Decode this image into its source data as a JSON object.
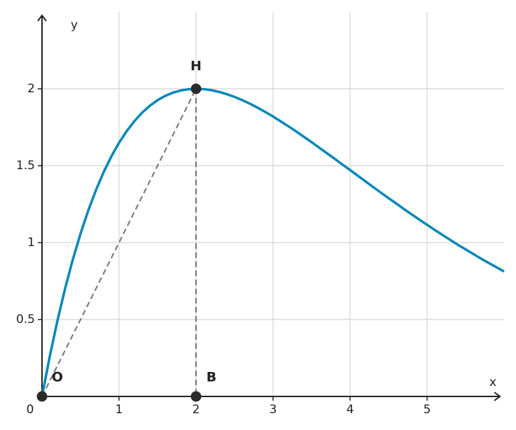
{
  "chart_data": {
    "type": "line",
    "x_label": "x",
    "y_label": "y",
    "x": [
      0,
      0.1,
      0.2,
      0.3,
      0.4,
      0.5,
      0.6,
      0.7,
      0.8,
      0.9,
      1.0,
      1.1,
      1.2,
      1.3,
      1.4,
      1.5,
      1.6,
      1.7,
      1.8,
      1.9,
      2.0,
      2.1,
      2.2,
      2.3,
      2.4,
      2.5,
      2.6,
      2.7,
      2.8,
      2.9,
      3.0,
      3.1,
      3.2,
      3.3,
      3.4,
      3.5,
      3.6,
      3.7,
      3.8,
      3.9,
      4.0,
      4.1,
      4.2,
      4.3,
      4.4,
      4.5,
      4.6,
      4.7,
      4.8,
      4.9,
      5.0,
      5.1,
      5.2,
      5.3,
      5.4,
      5.5,
      5.6,
      5.7,
      5.8,
      5.9,
      6.0
    ],
    "values": [
      0,
      0.259,
      0.492,
      0.702,
      0.89,
      1.058,
      1.208,
      1.341,
      1.458,
      1.56,
      1.649,
      1.725,
      1.79,
      1.845,
      1.89,
      1.926,
      1.954,
      1.975,
      1.989,
      1.997,
      2,
      1.998,
      1.991,
      1.98,
      1.965,
      1.947,
      1.926,
      1.903,
      1.877,
      1.849,
      1.82,
      1.788,
      1.756,
      1.723,
      1.688,
      1.653,
      1.617,
      1.581,
      1.545,
      1.508,
      1.472,
      1.435,
      1.398,
      1.361,
      1.325,
      1.289,
      1.254,
      1.218,
      1.184,
      1.149,
      1.116,
      1.082,
      1.05,
      1.018,
      0.986,
      0.956,
      0.926,
      0.896,
      0.868,
      0.84,
      0.812
    ],
    "color": "#0087b8",
    "points": [
      {
        "label": "O",
        "x": 0,
        "y": 0
      },
      {
        "label": "H",
        "x": 2,
        "y": 2
      },
      {
        "label": "B",
        "x": 2,
        "y": 0
      }
    ],
    "xlim": [
      0,
      6
    ],
    "ylim": [
      0,
      2.5
    ],
    "xticks": [
      0,
      1,
      2,
      3,
      4,
      5
    ],
    "yticks": [
      0.5,
      1,
      1.5,
      2
    ],
    "grid": true
  }
}
